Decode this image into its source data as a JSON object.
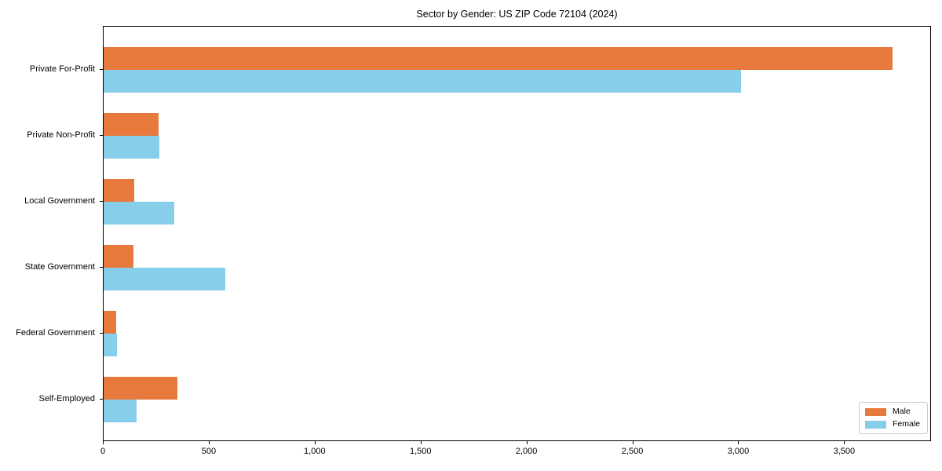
{
  "chart_data": {
    "type": "bar",
    "orientation": "horizontal",
    "title": "Sector by Gender: US ZIP Code 72104 (2024)",
    "categories": [
      "Private For-Profit",
      "Private Non-Profit",
      "Local Government",
      "State Government",
      "Federal Government",
      "Self-Employed"
    ],
    "series": [
      {
        "name": "Male",
        "color": "#e8793d",
        "values": [
          3725,
          260,
          145,
          140,
          58,
          350
        ]
      },
      {
        "name": "Female",
        "color": "#87ceeb",
        "values": [
          3010,
          262,
          335,
          575,
          62,
          155
        ]
      }
    ],
    "xlim": [
      0,
      3910
    ],
    "x_ticks": [
      0,
      500,
      1000,
      1500,
      2000,
      2500,
      3000,
      3500
    ],
    "x_tick_labels": [
      "0",
      "500",
      "1,000",
      "1,500",
      "2,000",
      "2,500",
      "3,000",
      "3,500"
    ],
    "xlabel": "",
    "ylabel": "",
    "grid": false,
    "legend_position": "lower right",
    "axis_color": "#000000",
    "background_color": "#ffffff"
  }
}
